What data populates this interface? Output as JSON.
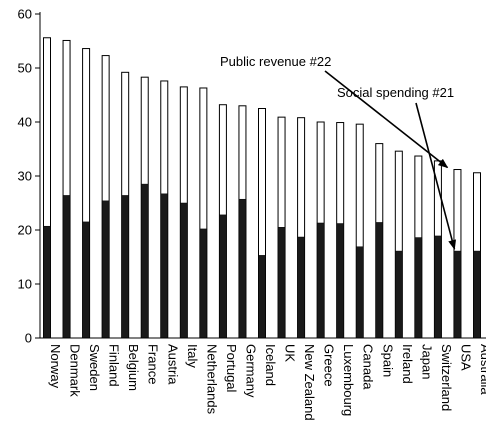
{
  "chart_data": {
    "type": "bar",
    "categories": [
      "Norway",
      "Denmark",
      "Sweden",
      "Finland",
      "Belgium",
      "France",
      "Austria",
      "Italy",
      "Netherlands",
      "Portugal",
      "Germany",
      "Iceland",
      "UK",
      "New Zealand",
      "Greece",
      "Luxembourg",
      "Canada",
      "Spain",
      "Ireland",
      "Japan",
      "Switzerland",
      "USA",
      "Australia"
    ],
    "series": [
      {
        "values": [
          55.6,
          55.1,
          53.6,
          52.3,
          49.2,
          48.3,
          47.6,
          46.5,
          46.3,
          43.2,
          43.0,
          42.5,
          40.9,
          40.8,
          40.0,
          39.9,
          39.6,
          36.0,
          34.6,
          33.7,
          32.8,
          31.2,
          30.6
        ],
        "color": "#ffffff"
      },
      {
        "values": [
          20.7,
          26.4,
          21.5,
          25.4,
          26.4,
          28.5,
          26.7,
          25.0,
          20.2,
          22.8,
          25.7,
          15.3,
          20.5,
          18.7,
          21.3,
          21.2,
          16.9,
          21.4,
          16.1,
          18.6,
          18.9,
          16.1,
          16.1
        ],
        "color": "#1a1a1a"
      }
    ],
    "ylim": [
      0,
      60
    ],
    "yticks": [
      0,
      10,
      20,
      30,
      40,
      50,
      60
    ],
    "grid": false,
    "legend": "none",
    "annotations": [
      {
        "text": "Public revenue #22",
        "points_to_category": "USA",
        "points_to_value": 31.2
      },
      {
        "text": "Social spending #21",
        "points_to_category": "USA",
        "points_to_value": 16.1
      }
    ]
  }
}
